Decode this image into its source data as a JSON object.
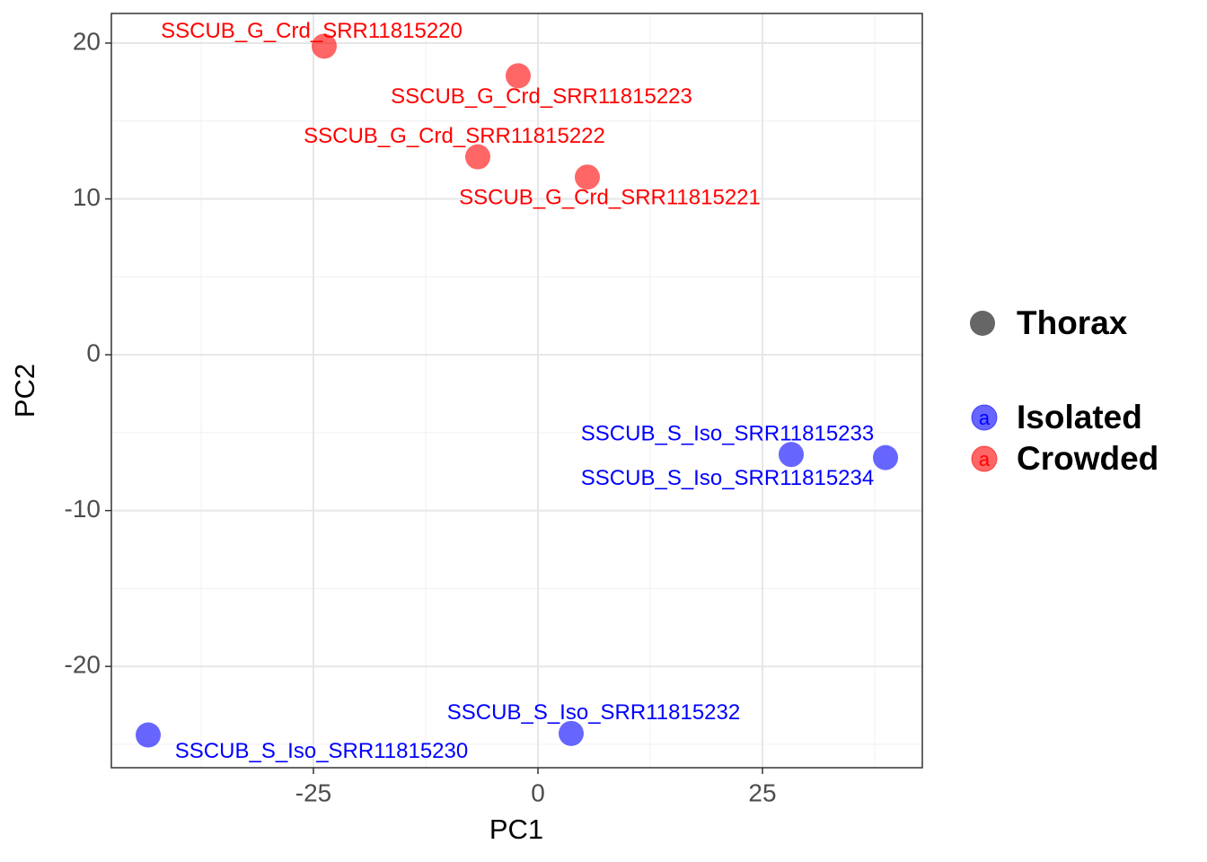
{
  "chart_data": {
    "type": "scatter",
    "xlabel": "PC1",
    "ylabel": "PC2",
    "xlim": [
      -47.5,
      42.8
    ],
    "ylim": [
      -26.5,
      21.9
    ],
    "xticks": [
      -25,
      0,
      25
    ],
    "yticks": [
      -20,
      -10,
      0,
      10,
      20
    ],
    "x_minor_grid": [
      -37.5,
      -12.5,
      12.5,
      37.5
    ],
    "y_minor_grid": [
      -25,
      -15,
      -5,
      5,
      15
    ],
    "grid": true,
    "alpha": 0.6,
    "shape_legend": [
      "Thorax"
    ],
    "legend_key_label": "a",
    "legend_position": "right",
    "series": [
      {
        "name": "Isolated",
        "color": "#0000ff",
        "x": [
          28.2,
          38.7,
          3.7,
          -43.4
        ],
        "values": [
          -6.4,
          -6.6,
          -24.3,
          -24.4
        ],
        "labels": [
          "SSCUB_S_Iso_SRR11815233",
          "SSCUB_S_Iso_SRR11815234",
          "SSCUB_S_Iso_SRR11815232",
          "SSCUB_S_Iso_SRR11815230"
        ]
      },
      {
        "name": "Crowded",
        "color": "#ff0000",
        "x": [
          -23.8,
          -2.2,
          -6.7,
          5.5
        ],
        "values": [
          19.8,
          17.9,
          12.7,
          11.4
        ],
        "labels": [
          "SSCUB_G_Crd_SRR11815220",
          "SSCUB_G_Crd_SRR11815223",
          "SSCUB_G_Crd_SRR11815222",
          "SSCUB_G_Crd_SRR11815221"
        ]
      }
    ]
  }
}
